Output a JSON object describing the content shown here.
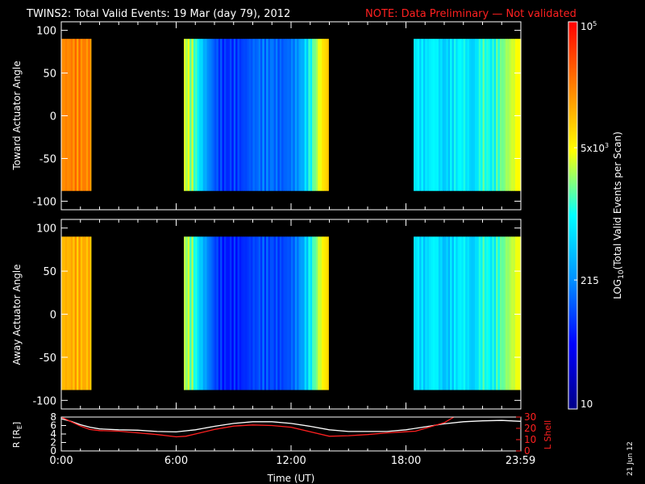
{
  "title": {
    "main": "TWINS2: Total Valid Events: 19 Mar (day  79), 2012",
    "note": "NOTE: Data Preliminary — Not validated",
    "note_color": "#ff2020"
  },
  "date_stamp": "21 Jun 12",
  "chart_data": [
    {
      "type": "heatmap",
      "panel": "toward",
      "ylabel": "Toward Actuator Angle",
      "xlim_hours": [
        0,
        24
      ],
      "ylim": [
        -110,
        110
      ],
      "yticks": [
        100,
        50,
        0,
        -50,
        -100
      ],
      "angle_range": [
        -88,
        90
      ],
      "data_blocks_hours": [
        [
          0,
          1.55
        ],
        [
          6.4,
          13.95
        ],
        [
          18.4,
          24
        ]
      ],
      "column_values": [
        [
          0.05,
          0.82
        ],
        [
          0.6,
          0.83
        ],
        [
          1.1,
          0.83
        ],
        [
          1.5,
          0.82
        ],
        [
          6.5,
          0.64
        ],
        [
          6.9,
          0.58
        ],
        [
          7.2,
          0.47
        ],
        [
          7.6,
          0.35
        ],
        [
          8.0,
          0.27
        ],
        [
          8.5,
          0.22
        ],
        [
          9.0,
          0.23
        ],
        [
          9.5,
          0.24
        ],
        [
          10.0,
          0.28
        ],
        [
          10.5,
          0.3
        ],
        [
          11.0,
          0.3
        ],
        [
          11.5,
          0.27
        ],
        [
          12.0,
          0.3
        ],
        [
          12.5,
          0.36
        ],
        [
          13.0,
          0.5
        ],
        [
          13.5,
          0.66
        ],
        [
          13.9,
          0.74
        ],
        [
          18.5,
          0.48
        ],
        [
          19.0,
          0.45
        ],
        [
          19.5,
          0.5
        ],
        [
          20.0,
          0.42
        ],
        [
          20.5,
          0.47
        ],
        [
          21.0,
          0.5
        ],
        [
          21.5,
          0.42
        ],
        [
          22.0,
          0.54
        ],
        [
          22.5,
          0.49
        ],
        [
          23.0,
          0.57
        ],
        [
          23.5,
          0.63
        ],
        [
          23.95,
          0.68
        ]
      ]
    },
    {
      "type": "heatmap",
      "panel": "away",
      "ylabel": "Away Actuator Angle",
      "xlim_hours": [
        0,
        24
      ],
      "ylim": [
        -110,
        110
      ],
      "yticks": [
        100,
        50,
        0,
        -50,
        -100
      ],
      "angle_range": [
        -88,
        90
      ],
      "data_blocks_hours": [
        [
          0,
          1.55
        ],
        [
          6.4,
          13.95
        ],
        [
          18.4,
          24
        ]
      ],
      "column_values": [
        [
          0.05,
          0.76
        ],
        [
          0.6,
          0.77
        ],
        [
          1.1,
          0.77
        ],
        [
          1.5,
          0.76
        ],
        [
          6.5,
          0.62
        ],
        [
          6.9,
          0.56
        ],
        [
          7.2,
          0.44
        ],
        [
          7.6,
          0.34
        ],
        [
          8.0,
          0.25
        ],
        [
          8.5,
          0.2
        ],
        [
          9.0,
          0.2
        ],
        [
          9.5,
          0.21
        ],
        [
          10.0,
          0.24
        ],
        [
          10.5,
          0.26
        ],
        [
          11.0,
          0.25
        ],
        [
          11.5,
          0.24
        ],
        [
          12.0,
          0.27
        ],
        [
          12.5,
          0.34
        ],
        [
          13.0,
          0.48
        ],
        [
          13.5,
          0.64
        ],
        [
          13.9,
          0.72
        ],
        [
          18.5,
          0.47
        ],
        [
          19.0,
          0.43
        ],
        [
          19.5,
          0.5
        ],
        [
          20.0,
          0.4
        ],
        [
          20.5,
          0.45
        ],
        [
          21.0,
          0.49
        ],
        [
          21.5,
          0.41
        ],
        [
          22.0,
          0.53
        ],
        [
          22.5,
          0.48
        ],
        [
          23.0,
          0.56
        ],
        [
          23.5,
          0.62
        ],
        [
          23.95,
          0.67
        ]
      ]
    },
    {
      "type": "line",
      "panel": "orbit",
      "ylabel": "R [R",
      "ylabel_sub": "E",
      "ylabel_close": "]",
      "y2label": "L Shell",
      "xlabel": "Time (UT)",
      "xlim_hours": [
        0,
        24
      ],
      "ylim": [
        0,
        8
      ],
      "yticks": [
        0,
        2,
        4,
        6,
        8
      ],
      "y2lim": [
        0,
        30
      ],
      "y2ticks": [
        0,
        10,
        20,
        30
      ],
      "xticks": [
        {
          "hour": 0,
          "label": "0:00"
        },
        {
          "hour": 6,
          "label": "6:00"
        },
        {
          "hour": 12,
          "label": "12:00"
        },
        {
          "hour": 18,
          "label": "18:00"
        },
        {
          "hour": 23.983,
          "label": "23:59"
        }
      ],
      "series": [
        {
          "key": "R",
          "color": "#ffffff",
          "points": [
            [
              0,
              7.6
            ],
            [
              0.5,
              7.0
            ],
            [
              1,
              6.2
            ],
            [
              1.5,
              5.6
            ],
            [
              2,
              5.2
            ],
            [
              3,
              5.0
            ],
            [
              4,
              4.9
            ],
            [
              5,
              4.6
            ],
            [
              6,
              4.5
            ],
            [
              7,
              5.0
            ],
            [
              8,
              5.8
            ],
            [
              9,
              6.5
            ],
            [
              10,
              6.9
            ],
            [
              11,
              6.9
            ],
            [
              12,
              6.5
            ],
            [
              13,
              5.8
            ],
            [
              14,
              5.0
            ],
            [
              15,
              4.6
            ],
            [
              16,
              4.6
            ],
            [
              17,
              4.6
            ],
            [
              18,
              5.0
            ],
            [
              19,
              5.7
            ],
            [
              20,
              6.4
            ],
            [
              21,
              6.9
            ],
            [
              22,
              7.1
            ],
            [
              23,
              7.2
            ],
            [
              24,
              7.0
            ]
          ]
        },
        {
          "key": "L",
          "color": "#ff2020",
          "points": [
            [
              0,
              30
            ],
            [
              0.5,
              26
            ],
            [
              1,
              22
            ],
            [
              1.5,
              19
            ],
            [
              2,
              18
            ],
            [
              3,
              17.5
            ],
            [
              4,
              16
            ],
            [
              5,
              14.5
            ],
            [
              6,
              12.5
            ],
            [
              6.5,
              13
            ],
            [
              7,
              15
            ],
            [
              8,
              19
            ],
            [
              9,
              22
            ],
            [
              10,
              23
            ],
            [
              11,
              22.5
            ],
            [
              12,
              21
            ],
            [
              13,
              17
            ],
            [
              14,
              13
            ],
            [
              15,
              13.5
            ],
            [
              16,
              14.5
            ],
            [
              17,
              16
            ],
            [
              18,
              17
            ],
            [
              18.5,
              17.5
            ],
            [
              19,
              20
            ],
            [
              20,
              25
            ],
            [
              20.5,
              30
            ]
          ]
        }
      ]
    }
  ],
  "colorbar": {
    "label_pre": "LOG",
    "label_sub": "10",
    "label_post": "(Total Valid Events per Scan)",
    "range": [
      10,
      100000
    ],
    "ticks": [
      {
        "value": 100000,
        "base": "10",
        "exp": "5"
      },
      {
        "value": 5000,
        "base": "5x10",
        "exp": "3"
      },
      {
        "value": 215,
        "base": "215",
        "exp": ""
      },
      {
        "value": 10,
        "base": "10",
        "exp": ""
      }
    ],
    "stops": [
      "#000088",
      "#0000ff",
      "#0090ff",
      "#00ffff",
      "#ffff00",
      "#ff8000",
      "#ff0000"
    ]
  }
}
